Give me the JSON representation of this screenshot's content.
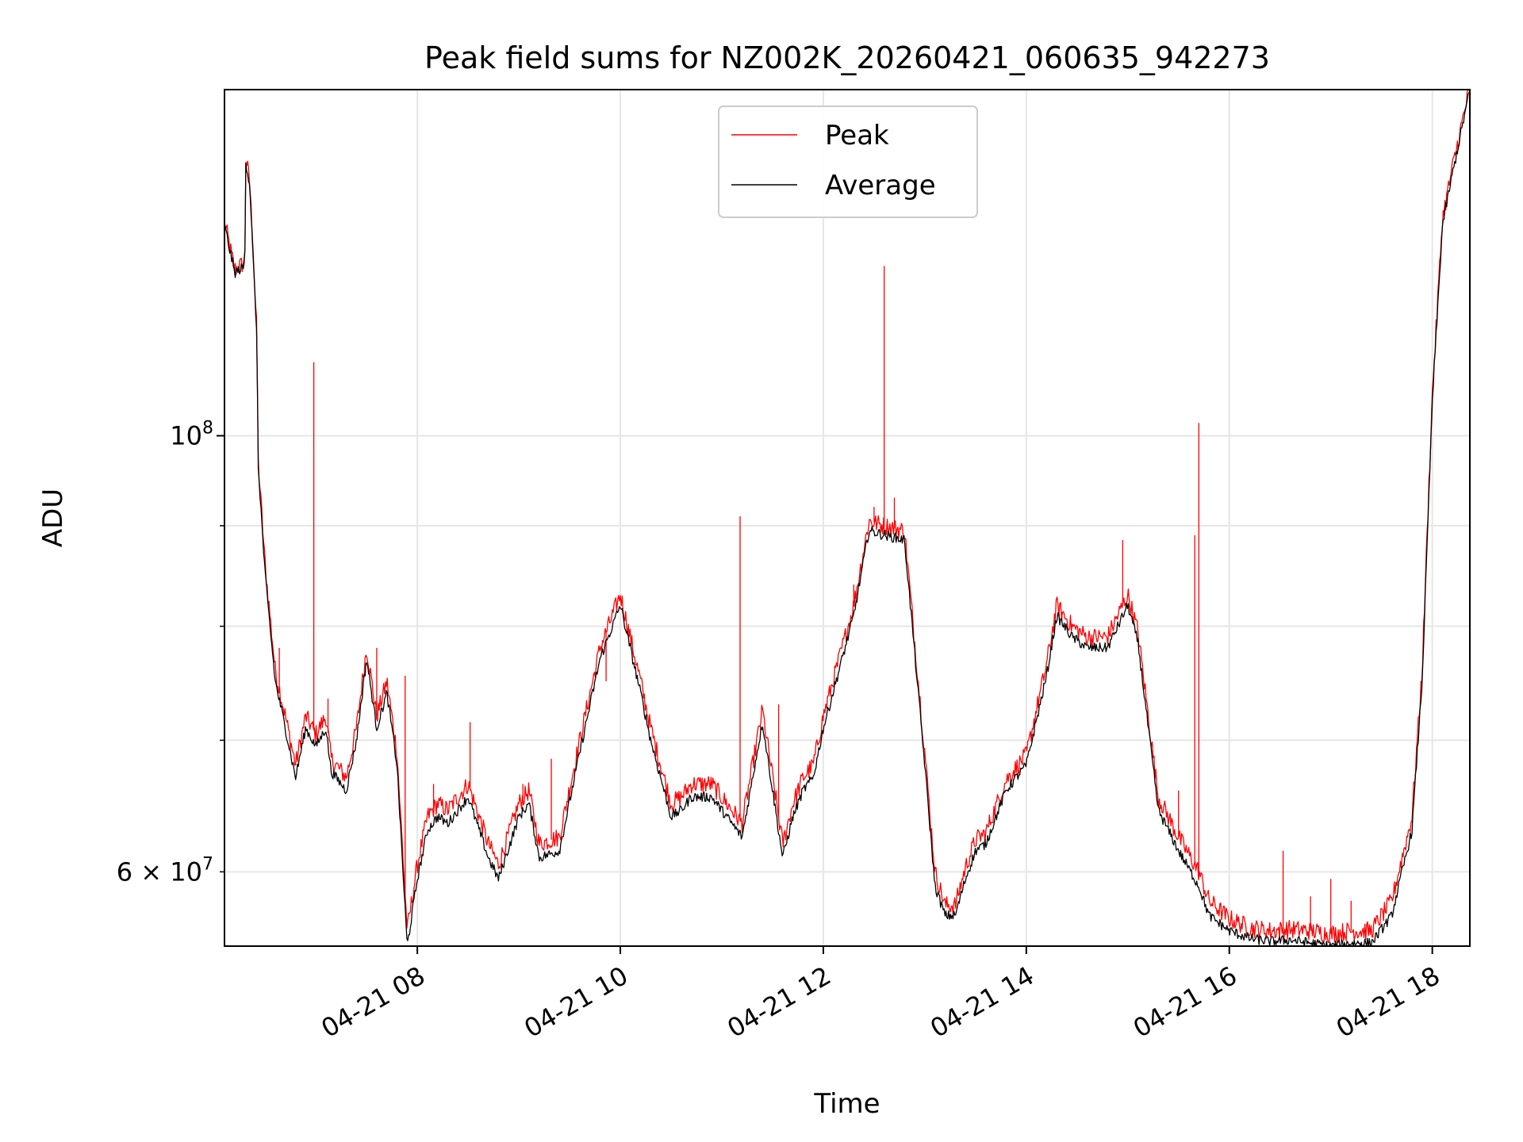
{
  "chart_data": {
    "type": "line",
    "title": "Peak field sums for NZ002K_20260421_060635_942273",
    "xlabel": "Time",
    "ylabel": "ADU",
    "yscale": "log",
    "x_unit": "hour of 2026-04-21",
    "xlim": [
      6.1,
      18.37
    ],
    "ylim": [
      55000000,
      150000000
    ],
    "x_ticks": [
      {
        "value": 8,
        "label": "04-21 08"
      },
      {
        "value": 10,
        "label": "04-21 10"
      },
      {
        "value": 12,
        "label": "04-21 12"
      },
      {
        "value": 14,
        "label": "04-21 14"
      },
      {
        "value": 16,
        "label": "04-21 16"
      },
      {
        "value": 18,
        "label": "04-21 18"
      }
    ],
    "y_ticks_major": [
      {
        "value": 100000000,
        "base": "10",
        "exp": "8"
      }
    ],
    "y_ticks_labeled_minor": [
      {
        "value": 60000000,
        "mant": "6",
        "base": "10",
        "exp": "7"
      }
    ],
    "y_ticks_minor": [
      60000000,
      70000000,
      80000000,
      90000000
    ],
    "grid": true,
    "legend": {
      "position": "upper-center",
      "entries": [
        "Peak",
        "Average"
      ]
    },
    "colors": {
      "Peak": "#ff0000",
      "Average": "#000000"
    },
    "series": [
      {
        "name": "Average",
        "x": [
          6.1,
          6.2,
          6.3,
          6.31,
          6.35,
          6.42,
          6.43,
          6.5,
          6.6,
          6.7,
          6.8,
          6.9,
          7.0,
          7.1,
          7.15,
          7.3,
          7.4,
          7.5,
          7.6,
          7.7,
          7.8,
          7.9,
          8.0,
          8.1,
          8.2,
          8.3,
          8.5,
          8.7,
          8.8,
          9.0,
          9.1,
          9.2,
          9.4,
          9.6,
          9.8,
          10.0,
          10.2,
          10.3,
          10.5,
          10.6,
          10.7,
          10.9,
          11.2,
          11.4,
          11.6,
          11.7,
          11.8,
          11.9,
          12.0,
          12.2,
          12.3,
          12.45,
          12.6,
          12.8,
          13.0,
          13.1,
          13.2,
          13.3,
          13.4,
          13.5,
          13.6,
          13.8,
          14.0,
          14.2,
          14.3,
          14.45,
          14.6,
          14.8,
          15.0,
          15.1,
          15.3,
          15.5,
          15.7,
          15.8,
          16.0,
          16.2,
          16.4,
          16.6,
          16.8,
          17.0,
          17.2,
          17.4,
          17.6,
          17.8,
          17.9,
          18.0,
          18.1,
          18.2,
          18.37
        ],
        "y": [
          128000000,
          121000000,
          122000000,
          138000000,
          134000000,
          112000000,
          97000000,
          85000000,
          75000000,
          71000000,
          67000000,
          71000000,
          69500000,
          71000000,
          67500000,
          66000000,
          70000000,
          77000000,
          71000000,
          74000000,
          68000000,
          55000000,
          59500000,
          63000000,
          64000000,
          63500000,
          65500000,
          61000000,
          59500000,
          64000000,
          65000000,
          61000000,
          61500000,
          69000000,
          77000000,
          82000000,
          74000000,
          70000000,
          64000000,
          64500000,
          65500000,
          65500000,
          62500000,
          71500000,
          61000000,
          64000000,
          66000000,
          67000000,
          71000000,
          77500000,
          81000000,
          89500000,
          89000000,
          88500000,
          68000000,
          59000000,
          57000000,
          57000000,
          59500000,
          61500000,
          62000000,
          66000000,
          68000000,
          75500000,
          81000000,
          79000000,
          78000000,
          78000000,
          82000000,
          78500000,
          64500000,
          61500000,
          59000000,
          57000000,
          56000000,
          55500000,
          55300000,
          55400000,
          55200000,
          55000000,
          55200000,
          55200000,
          57000000,
          63000000,
          75000000,
          104000000,
          128000000,
          136000000,
          150000000
        ]
      },
      {
        "name": "Peak",
        "x": [
          6.1,
          6.2,
          6.3,
          6.31,
          6.35,
          6.42,
          6.43,
          6.5,
          6.6,
          6.7,
          6.8,
          6.9,
          7.0,
          7.1,
          7.15,
          7.3,
          7.4,
          7.5,
          7.6,
          7.7,
          7.8,
          7.9,
          8.0,
          8.1,
          8.2,
          8.3,
          8.5,
          8.7,
          8.8,
          9.0,
          9.1,
          9.2,
          9.4,
          9.6,
          9.8,
          10.0,
          10.2,
          10.3,
          10.5,
          10.6,
          10.7,
          10.9,
          11.2,
          11.4,
          11.6,
          11.7,
          11.8,
          11.9,
          12.0,
          12.2,
          12.3,
          12.45,
          12.6,
          12.8,
          13.0,
          13.1,
          13.2,
          13.3,
          13.4,
          13.5,
          13.6,
          13.8,
          14.0,
          14.2,
          14.3,
          14.45,
          14.6,
          14.8,
          15.0,
          15.1,
          15.3,
          15.5,
          15.7,
          15.8,
          16.0,
          16.2,
          16.4,
          16.6,
          16.8,
          17.0,
          17.2,
          17.4,
          17.6,
          17.8,
          17.9,
          18.0,
          18.1,
          18.2,
          18.37
        ],
        "y": [
          128500000,
          121500000,
          122500000,
          138500000,
          134500000,
          112500000,
          97500000,
          86000000,
          76000000,
          72000000,
          68000000,
          72000000,
          70500000,
          72000000,
          68500000,
          67000000,
          71000000,
          78000000,
          72000000,
          75000000,
          69000000,
          56000000,
          60500000,
          64000000,
          65000000,
          64500000,
          66500000,
          62000000,
          60500000,
          65000000,
          66000000,
          62000000,
          62500000,
          70000000,
          78000000,
          83000000,
          75000000,
          71000000,
          65000000,
          65500000,
          66500000,
          66500000,
          63500000,
          72500000,
          62000000,
          65000000,
          67000000,
          68000000,
          72000000,
          78500000,
          82000000,
          90500000,
          90000000,
          89500000,
          69000000,
          60000000,
          57700000,
          57700000,
          60300000,
          62300000,
          62800000,
          66800000,
          68800000,
          76500000,
          82000000,
          80000000,
          79000000,
          79000000,
          83000000,
          79500000,
          65500000,
          62500000,
          60000000,
          58000000,
          56800000,
          56200000,
          56000000,
          56100000,
          56000000,
          55800000,
          56000000,
          56000000,
          58000000,
          64000000,
          76000000,
          105000000,
          129000000,
          137000000,
          150500000
        ]
      }
    ],
    "peak_spikes": [
      {
        "x": 6.18,
        "y": 124000000
      },
      {
        "x": 6.64,
        "y": 78000000
      },
      {
        "x": 6.98,
        "y": 109000000
      },
      {
        "x": 7.12,
        "y": 73500000
      },
      {
        "x": 7.6,
        "y": 78000000
      },
      {
        "x": 7.88,
        "y": 75500000
      },
      {
        "x": 8.16,
        "y": 66500000
      },
      {
        "x": 8.52,
        "y": 71500000
      },
      {
        "x": 9.04,
        "y": 66500000
      },
      {
        "x": 9.32,
        "y": 68500000
      },
      {
        "x": 9.86,
        "y": 75000000
      },
      {
        "x": 11.18,
        "y": 91000000
      },
      {
        "x": 11.56,
        "y": 73000000
      },
      {
        "x": 12.3,
        "y": 84000000
      },
      {
        "x": 12.5,
        "y": 92000000
      },
      {
        "x": 12.6,
        "y": 122000000
      },
      {
        "x": 12.7,
        "y": 93000000
      },
      {
        "x": 14.35,
        "y": 80500000
      },
      {
        "x": 14.95,
        "y": 88500000
      },
      {
        "x": 15.5,
        "y": 66000000
      },
      {
        "x": 15.66,
        "y": 89000000
      },
      {
        "x": 15.7,
        "y": 101500000
      },
      {
        "x": 16.53,
        "y": 61500000
      },
      {
        "x": 16.8,
        "y": 58300000
      },
      {
        "x": 17.0,
        "y": 59500000
      },
      {
        "x": 17.2,
        "y": 58000000
      }
    ]
  }
}
